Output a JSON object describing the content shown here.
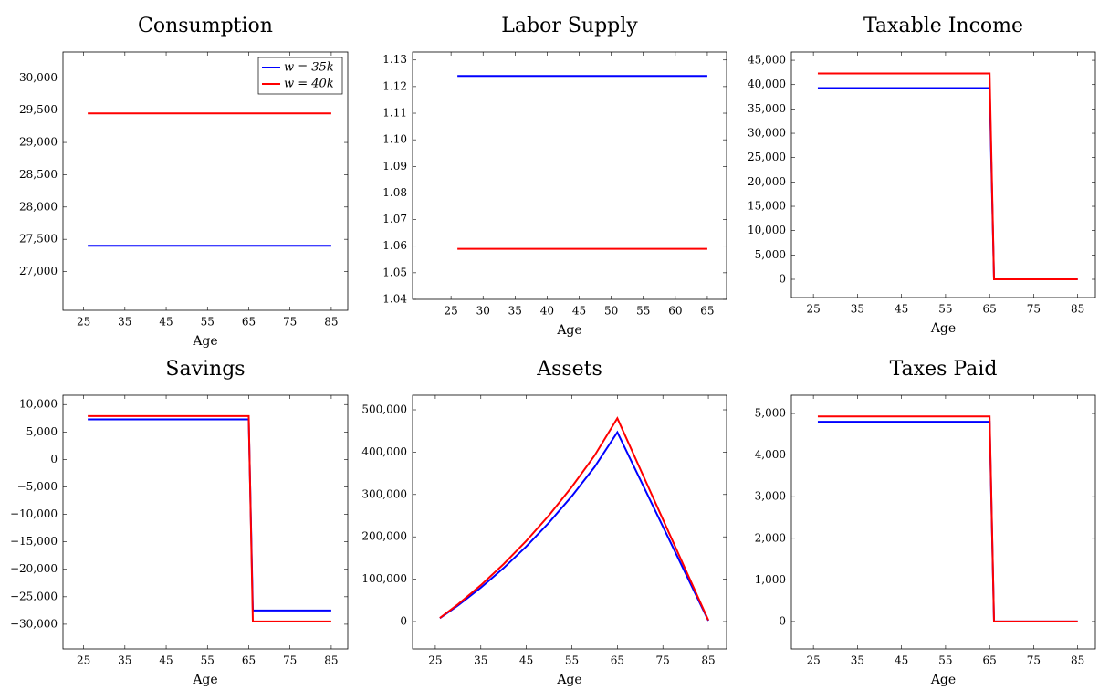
{
  "chart_data": [
    {
      "type": "line",
      "title": "Consumption",
      "xlabel": "Age",
      "legend": "north east",
      "x": [
        26,
        85
      ],
      "series": [
        {
          "name": "w = 35k",
          "color": "#0000ff",
          "values": [
            27400,
            27400
          ]
        },
        {
          "name": "w = 40k",
          "color": "#ff0000",
          "values": [
            29450,
            29450
          ]
        }
      ],
      "xlim": [
        20,
        89
      ],
      "xticks": [
        25,
        35,
        45,
        55,
        65,
        75,
        85
      ],
      "ylim": [
        26400,
        30400
      ],
      "yticks": [
        {
          "value": 27000,
          "label": "27,000"
        },
        {
          "value": 27500,
          "label": "27,500"
        },
        {
          "value": 28000,
          "label": "28,000"
        },
        {
          "value": 28500,
          "label": "28,500"
        },
        {
          "value": 29000,
          "label": "29,000"
        },
        {
          "value": 29500,
          "label": "29,500"
        },
        {
          "value": 30000,
          "label": "30,000"
        }
      ]
    },
    {
      "type": "line",
      "title": "Labor Supply",
      "xlabel": "Age",
      "x": [
        26,
        65
      ],
      "series": [
        {
          "color": "#0000ff",
          "values": [
            1.124,
            1.124
          ]
        },
        {
          "color": "#ff0000",
          "values": [
            1.059,
            1.059
          ]
        }
      ],
      "xlim": [
        19,
        68
      ],
      "xticks": [
        25,
        30,
        35,
        40,
        45,
        50,
        55,
        60,
        65
      ],
      "ylim": [
        1.04,
        1.133
      ],
      "yticks": [
        1.04,
        1.05,
        1.06,
        1.07,
        1.08,
        1.09,
        {
          "value": 1.1,
          "label": "1.10"
        },
        1.11,
        1.12,
        1.13
      ]
    },
    {
      "type": "line",
      "title": "Taxable Income",
      "xlabel": "Age",
      "x": [
        26,
        65,
        66,
        85
      ],
      "series": [
        {
          "color": "#0000ff",
          "values": [
            39300,
            39300,
            0,
            0
          ]
        },
        {
          "color": "#ff0000",
          "values": [
            42300,
            42300,
            0,
            0
          ]
        }
      ],
      "xlim": [
        20,
        89
      ],
      "xticks": [
        25,
        35,
        45,
        55,
        65,
        75,
        85
      ],
      "ylim": [
        -3750,
        46700
      ],
      "yticks": [
        0,
        {
          "value": 5000,
          "label": "5,000"
        },
        {
          "value": 10000,
          "label": "10,000"
        },
        {
          "value": 15000,
          "label": "15,000"
        },
        {
          "value": 20000,
          "label": "20,000"
        },
        {
          "value": 25000,
          "label": "25,000"
        },
        {
          "value": 30000,
          "label": "30,000"
        },
        {
          "value": 35000,
          "label": "35,000"
        },
        {
          "value": 40000,
          "label": "40,000"
        },
        {
          "value": 45000,
          "label": "45,000"
        }
      ]
    },
    {
      "type": "line",
      "title": "Savings",
      "xlabel": "Age",
      "x": [
        26,
        65,
        66,
        85
      ],
      "series": [
        {
          "color": "#0000ff",
          "values": [
            7300,
            7300,
            -27500,
            -27500
          ]
        },
        {
          "color": "#ff0000",
          "values": [
            7900,
            7900,
            -29500,
            -29500
          ]
        }
      ],
      "xlim": [
        20,
        89
      ],
      "xticks": [
        25,
        35,
        45,
        55,
        65,
        75,
        85
      ],
      "ylim": [
        -34500,
        11700
      ],
      "yticks": [
        {
          "value": -30000,
          "label": "−30,000"
        },
        {
          "value": -25000,
          "label": "−25,000"
        },
        {
          "value": -20000,
          "label": "−20,000"
        },
        {
          "value": -15000,
          "label": "−15,000"
        },
        {
          "value": -10000,
          "label": "−10,000"
        },
        {
          "value": -5000,
          "label": "−5,000"
        },
        0,
        {
          "value": 5000,
          "label": "5,000"
        },
        {
          "value": 10000,
          "label": "10,000"
        }
      ]
    },
    {
      "type": "line",
      "title": "Assets",
      "xlabel": "Age",
      "x": [
        26,
        30,
        35,
        40,
        45,
        50,
        55,
        60,
        65,
        70,
        75,
        80,
        85
      ],
      "series": [
        {
          "color": "#0000ff",
          "values": [
            8000,
            38000,
            79900,
            126200,
            177400,
            233800,
            296200,
            365000,
            447000,
            335750,
            224500,
            113250,
            2000
          ]
        },
        {
          "color": "#ff0000",
          "values": [
            8500,
            40800,
            85800,
            135500,
            190500,
            251100,
            318100,
            392000,
            480000,
            360750,
            241500,
            122250,
            3000
          ]
        }
      ],
      "xlim": [
        20,
        89
      ],
      "xticks": [
        25,
        35,
        45,
        55,
        65,
        75,
        85
      ],
      "ylim": [
        -64700,
        534500
      ],
      "yticks": [
        0,
        {
          "value": 100000,
          "label": "100,000"
        },
        {
          "value": 200000,
          "label": "200,000"
        },
        {
          "value": 300000,
          "label": "300,000"
        },
        {
          "value": 400000,
          "label": "400,000"
        },
        {
          "value": 500000,
          "label": "500,000"
        }
      ]
    },
    {
      "type": "line",
      "title": "Taxes Paid",
      "xlabel": "Age",
      "x": [
        26,
        65,
        66,
        85
      ],
      "series": [
        {
          "color": "#0000ff",
          "values": [
            4800,
            4800,
            0,
            0
          ]
        },
        {
          "color": "#ff0000",
          "values": [
            4930,
            4930,
            0,
            0
          ]
        }
      ],
      "xlim": [
        20,
        89
      ],
      "xticks": [
        25,
        35,
        45,
        55,
        65,
        75,
        85
      ],
      "ylim": [
        -660,
        5440
      ],
      "yticks": [
        0,
        {
          "value": 1000,
          "label": "1,000"
        },
        {
          "value": 2000,
          "label": "2,000"
        },
        {
          "value": 3000,
          "label": "3,000"
        },
        {
          "value": 4000,
          "label": "4,000"
        },
        {
          "value": 5000,
          "label": "5,000"
        }
      ]
    }
  ]
}
